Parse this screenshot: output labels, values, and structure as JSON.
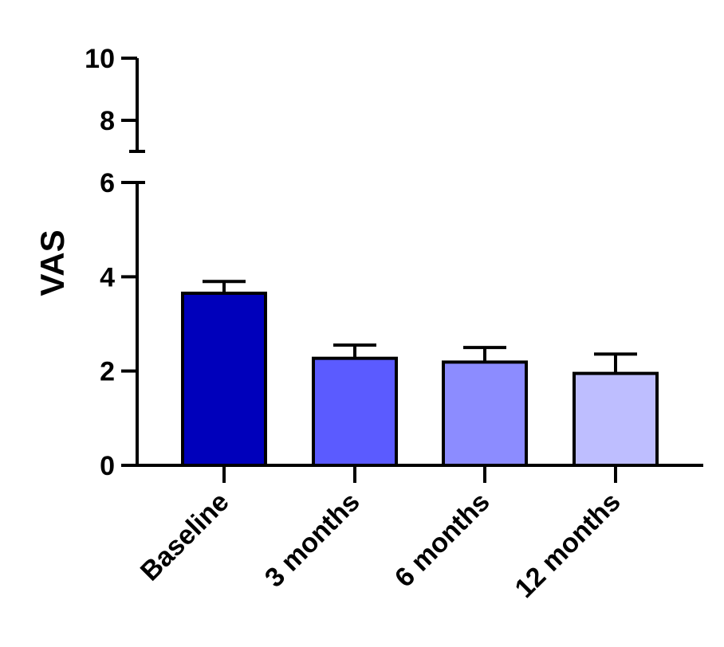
{
  "chart_data": {
    "type": "bar",
    "title": "",
    "xlabel": "",
    "ylabel": "VAS",
    "categories": [
      "Baseline",
      "3 months",
      "6 months",
      "12 months"
    ],
    "values": [
      3.65,
      2.27,
      2.19,
      1.95
    ],
    "error_upper": [
      3.9,
      2.55,
      2.5,
      2.36
    ],
    "bar_colors": [
      "#0000BB",
      "#5B5BFF",
      "#8C8CFF",
      "#BEBEFF"
    ],
    "y_axis": {
      "broken": true,
      "lower_segment": {
        "range": [
          0,
          6
        ],
        "ticks": [
          "0",
          "2",
          "4",
          "6"
        ]
      },
      "upper_segment": {
        "range": [
          7,
          10
        ],
        "ticks": [
          "8",
          "10"
        ]
      }
    },
    "grid": false,
    "legend": "none"
  }
}
